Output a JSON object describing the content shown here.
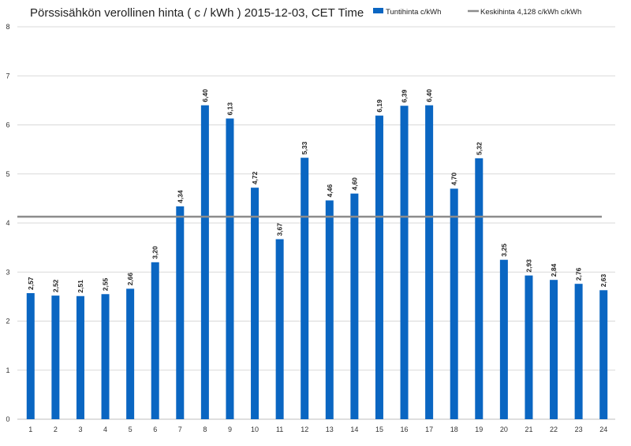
{
  "chart_data": {
    "type": "bar",
    "title": "Pörssisähkön verollinen hinta ( c / kWh ) 2015-12-03, CET Time",
    "xlabel": "",
    "ylabel": "",
    "ylim": [
      0,
      8
    ],
    "yticks": [
      "0",
      "1",
      "2",
      "3",
      "4",
      "5",
      "6",
      "7",
      "8"
    ],
    "grid": true,
    "legend_position": "top-right",
    "categories": [
      "1",
      "2",
      "3",
      "4",
      "5",
      "6",
      "7",
      "8",
      "9",
      "10",
      "11",
      "12",
      "13",
      "14",
      "15",
      "16",
      "17",
      "18",
      "19",
      "20",
      "21",
      "22",
      "23",
      "24"
    ],
    "series": [
      {
        "name": "Tuntihinta c/kWh",
        "color": "#0a66c2",
        "values": [
          2.57,
          2.52,
          2.51,
          2.55,
          2.66,
          3.2,
          4.34,
          6.4,
          6.13,
          4.72,
          3.67,
          5.33,
          4.46,
          4.6,
          6.19,
          6.39,
          6.4,
          4.7,
          5.32,
          3.25,
          2.93,
          2.84,
          2.76,
          2.63
        ],
        "labels": [
          "2,57",
          "2,52",
          "2,51",
          "2,55",
          "2,66",
          "3,20",
          "4,34",
          "6,40",
          "6,13",
          "4,72",
          "3,67",
          "5,33",
          "4,46",
          "4,60",
          "6,19",
          "6,39",
          "6,40",
          "4,70",
          "5,32",
          "3,25",
          "2,93",
          "2,84",
          "2,76",
          "2,63"
        ]
      },
      {
        "name": "Keskihinta 4,128 c/kWh c/kWh",
        "color": "#8c8c8c",
        "type": "line",
        "value": 4.128
      }
    ]
  }
}
